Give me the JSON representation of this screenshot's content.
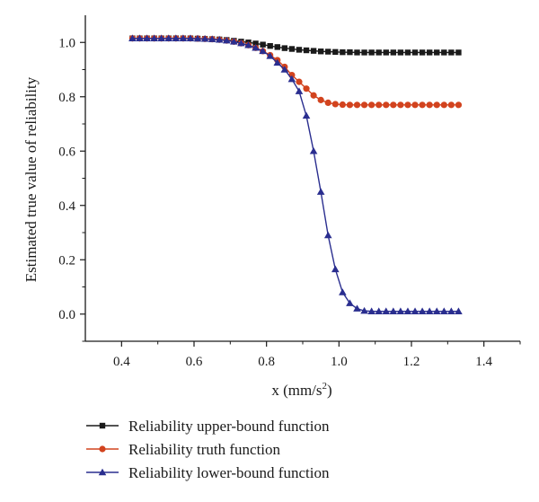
{
  "chart_data": {
    "type": "line",
    "xlabel": "x (mm/s",
    "xlabel_sup": "2",
    "xlabel_close": ")",
    "ylabel": "Estimated true value of reliability",
    "xlim": [
      0.3,
      1.5
    ],
    "ylim": [
      -0.1,
      1.1
    ],
    "xticks": [
      "0.4",
      "0.6",
      "0.8",
      "1.0",
      "1.2",
      "1.4"
    ],
    "yticks": [
      "0.0",
      "0.2",
      "0.4",
      "0.6",
      "0.8",
      "1.0"
    ],
    "grid": false,
    "legend_position": "bottom",
    "x": [
      0.43,
      0.45,
      0.47,
      0.49,
      0.51,
      0.53,
      0.55,
      0.57,
      0.59,
      0.61,
      0.63,
      0.65,
      0.67,
      0.69,
      0.71,
      0.73,
      0.75,
      0.77,
      0.79,
      0.81,
      0.83,
      0.85,
      0.87,
      0.89,
      0.91,
      0.93,
      0.95,
      0.97,
      0.99,
      1.01,
      1.03,
      1.05,
      1.07,
      1.09,
      1.11,
      1.13,
      1.15,
      1.17,
      1.19,
      1.21,
      1.23,
      1.25,
      1.27,
      1.29,
      1.31,
      1.33
    ],
    "series": [
      {
        "name": "Reliability upper-bound function",
        "color": "#1a1a1a",
        "marker": "square",
        "values": [
          1.015,
          1.015,
          1.015,
          1.015,
          1.015,
          1.015,
          1.015,
          1.015,
          1.015,
          1.014,
          1.013,
          1.012,
          1.011,
          1.009,
          1.006,
          1.003,
          1.0,
          0.996,
          0.992,
          0.987,
          0.983,
          0.979,
          0.976,
          0.973,
          0.971,
          0.969,
          0.967,
          0.966,
          0.965,
          0.964,
          0.964,
          0.963,
          0.963,
          0.963,
          0.963,
          0.963,
          0.963,
          0.963,
          0.963,
          0.963,
          0.963,
          0.963,
          0.963,
          0.963,
          0.963,
          0.963
        ]
      },
      {
        "name": "Reliability truth function",
        "color": "#d2431e",
        "marker": "circle",
        "values": [
          1.015,
          1.015,
          1.015,
          1.015,
          1.015,
          1.015,
          1.015,
          1.015,
          1.015,
          1.014,
          1.013,
          1.012,
          1.01,
          1.007,
          1.003,
          0.997,
          0.99,
          0.98,
          0.968,
          0.953,
          0.935,
          0.91,
          0.88,
          0.855,
          0.83,
          0.805,
          0.788,
          0.778,
          0.773,
          0.771,
          0.77,
          0.77,
          0.77,
          0.77,
          0.77,
          0.77,
          0.77,
          0.77,
          0.77,
          0.77,
          0.77,
          0.77,
          0.77,
          0.77,
          0.77,
          0.77
        ]
      },
      {
        "name": "Reliability lower-bound function",
        "color": "#2a2e8f",
        "marker": "triangle",
        "values": [
          1.015,
          1.015,
          1.015,
          1.015,
          1.015,
          1.015,
          1.015,
          1.015,
          1.015,
          1.014,
          1.013,
          1.012,
          1.01,
          1.007,
          1.003,
          0.997,
          0.99,
          0.98,
          0.968,
          0.95,
          0.925,
          0.9,
          0.865,
          0.82,
          0.73,
          0.6,
          0.45,
          0.29,
          0.165,
          0.08,
          0.04,
          0.02,
          0.012,
          0.01,
          0.01,
          0.01,
          0.01,
          0.01,
          0.01,
          0.01,
          0.01,
          0.01,
          0.01,
          0.01,
          0.01,
          0.01
        ]
      }
    ]
  }
}
